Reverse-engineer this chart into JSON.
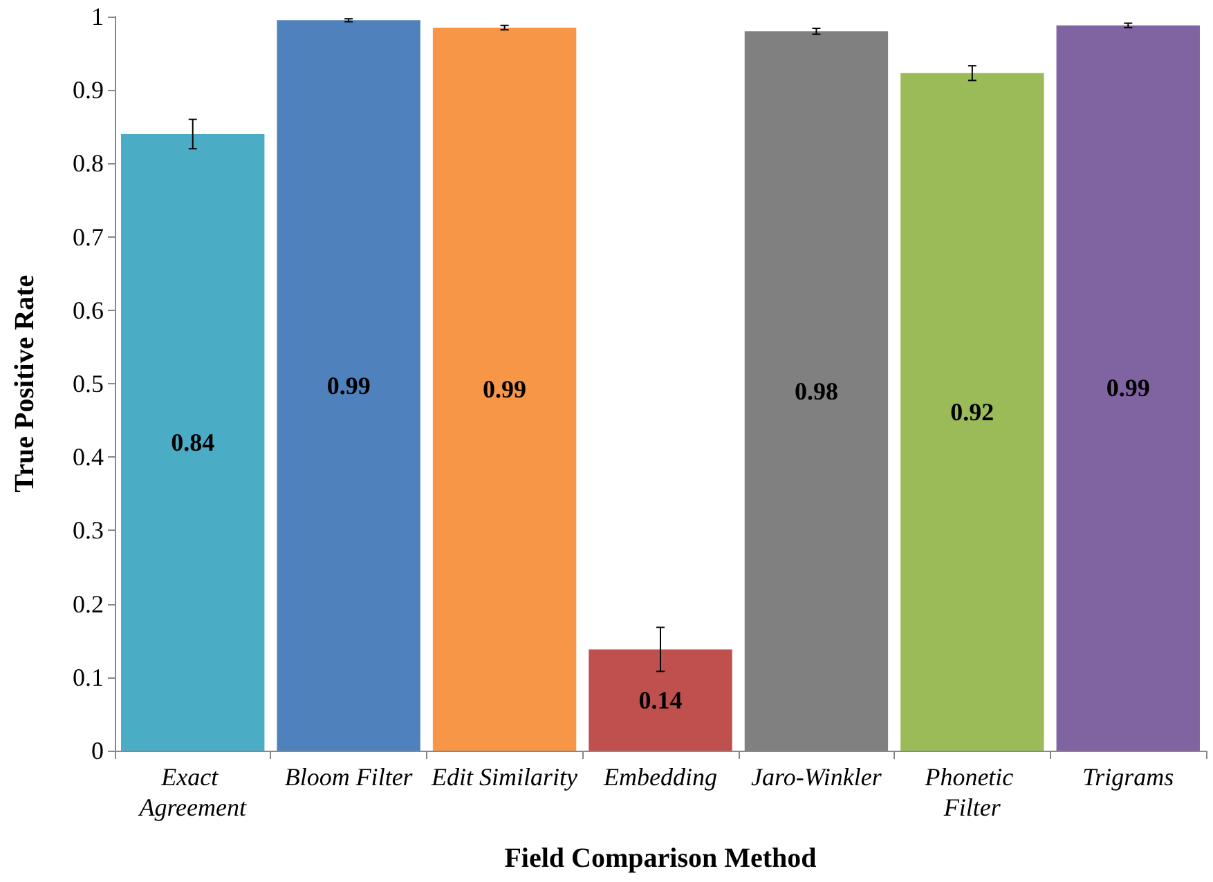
{
  "chart_data": {
    "type": "bar",
    "xlabel": "Field Comparison Method",
    "ylabel": "True Positive Rate",
    "categories": [
      "Exact Agreement",
      "Bloom Filter",
      "Edit Similarity",
      "Embedding",
      "Jaro-Winkler",
      "Phonetic Filter",
      "Trigrams"
    ],
    "values": [
      0.84,
      0.995,
      0.985,
      0.138,
      0.98,
      0.923,
      0.988
    ],
    "value_labels": [
      "0.84",
      "0.99",
      "0.99",
      "0.14",
      "0.98",
      "0.92",
      "0.99"
    ],
    "errors": [
      0.02,
      0.002,
      0.003,
      0.03,
      0.004,
      0.01,
      0.003
    ],
    "colors": [
      "#4bacc6",
      "#4f81bd",
      "#f79646",
      "#c0504d",
      "#808080",
      "#9bbb59",
      "#8064a2"
    ],
    "ylim": [
      0,
      1
    ],
    "yticks": [
      0,
      0.1,
      0.2,
      0.3,
      0.4,
      0.5,
      0.6,
      0.7,
      0.8,
      0.9,
      1
    ],
    "grid": false
  }
}
